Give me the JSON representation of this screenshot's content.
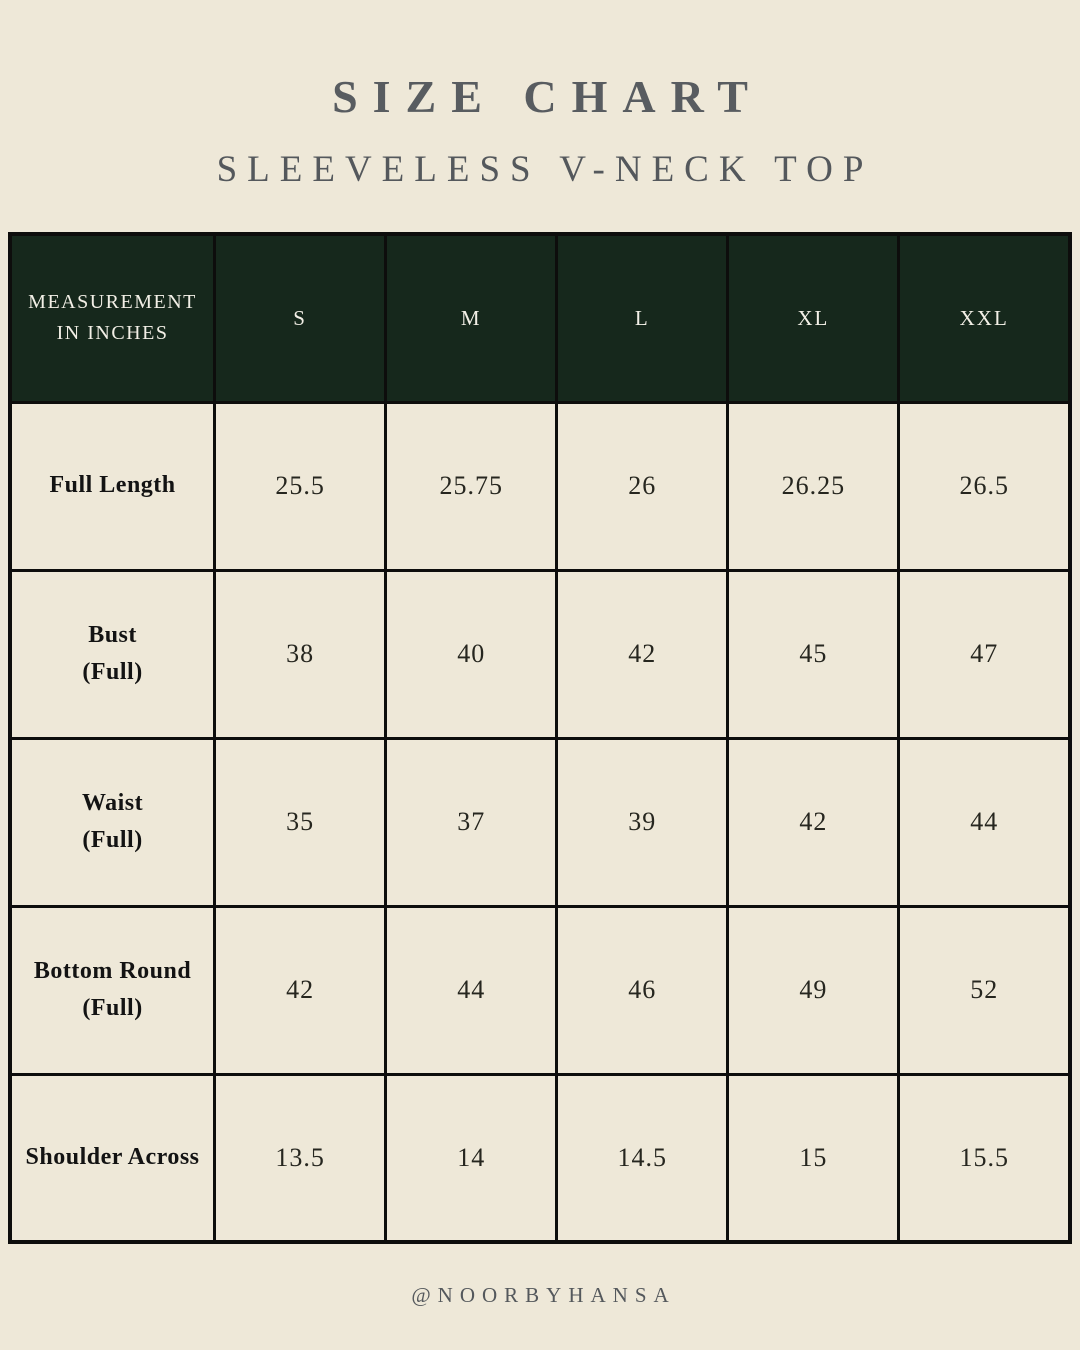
{
  "page": {
    "title": "SIZE CHART",
    "subtitle": "SLEEVELESS V-NECK TOP",
    "footer": "@NOORBYHANSA"
  },
  "colors": {
    "background": "#eee8d8",
    "header_row_background": "#16281c",
    "header_row_text": "#f2efe6",
    "table_border": "#0d0d0c",
    "heading_text": "#585c60",
    "cell_text": "#26261f"
  },
  "table": {
    "header_col1_line1": "MEASUREMENT",
    "header_col1_line2": "IN INCHES",
    "sizes": [
      "S",
      "M",
      "L",
      "XL",
      "XXL"
    ],
    "rows": [
      {
        "label": "Full Length",
        "sublabel": "",
        "values": [
          "25.5",
          "25.75",
          "26",
          "26.25",
          "26.5"
        ]
      },
      {
        "label": "Bust",
        "sublabel": "(Full)",
        "values": [
          "38",
          "40",
          "42",
          "45",
          "47"
        ]
      },
      {
        "label": "Waist",
        "sublabel": "(Full)",
        "values": [
          "35",
          "37",
          "39",
          "42",
          "44"
        ]
      },
      {
        "label": "Bottom Round",
        "sublabel": "(Full)",
        "values": [
          "42",
          "44",
          "46",
          "49",
          "52"
        ]
      },
      {
        "label": "Shoulder Across",
        "sublabel": "",
        "values": [
          "13.5",
          "14",
          "14.5",
          "15",
          "15.5"
        ]
      }
    ]
  },
  "chart_data": {
    "type": "table",
    "title": "SIZE CHART",
    "subtitle": "SLEEVELESS V-NECK TOP",
    "columns": [
      "MEASUREMENT IN INCHES",
      "S",
      "M",
      "L",
      "XL",
      "XXL"
    ],
    "rows": [
      [
        "Full Length",
        25.5,
        25.75,
        26,
        26.25,
        26.5
      ],
      [
        "Bust (Full)",
        38,
        40,
        42,
        45,
        47
      ],
      [
        "Waist (Full)",
        35,
        37,
        39,
        42,
        44
      ],
      [
        "Bottom Round (Full)",
        42,
        44,
        46,
        49,
        52
      ],
      [
        "Shoulder Across",
        13.5,
        14,
        14.5,
        15,
        15.5
      ]
    ],
    "footer": "@NOORBYHANSA"
  }
}
